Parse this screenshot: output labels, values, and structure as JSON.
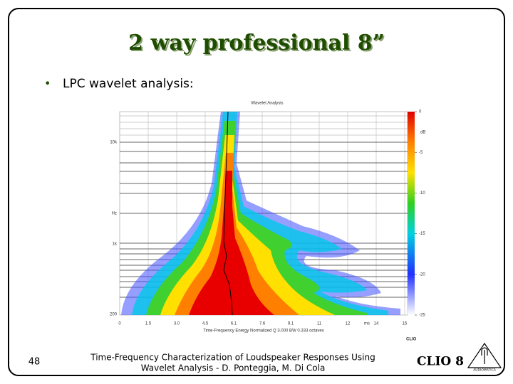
{
  "title": "2 way professional 8”",
  "bullet": "LPC wavelet analysis:",
  "figure": {
    "title": "Wavelet Analysis",
    "xticks": [
      "0",
      "1.5",
      "3.0",
      "4.5",
      "6.1",
      "7.6",
      "9.1",
      "11",
      "12",
      "14",
      "15"
    ],
    "x_unit": "ms",
    "yticks": [
      "10k",
      "Hz",
      "1k",
      "200"
    ],
    "x_label": "Time-Frequency Energy  Normalized  Q 3.000  BW 0.333 octaves",
    "colorbar_ticks": [
      "0",
      "-5",
      "-10",
      "-15",
      "-20",
      "-25"
    ],
    "colorbar_unit": "dB",
    "brand": "CLIO"
  },
  "footer": {
    "page": "48",
    "citation_line1": "Time-Frequency Characterization of Loudspeaker Responses Using",
    "citation_line2": "Wavelet Analysis - D. Ponteggia, M. Di Cola",
    "logo": "CLIO 8",
    "logo_sub": "AUDIOMATICA"
  }
}
